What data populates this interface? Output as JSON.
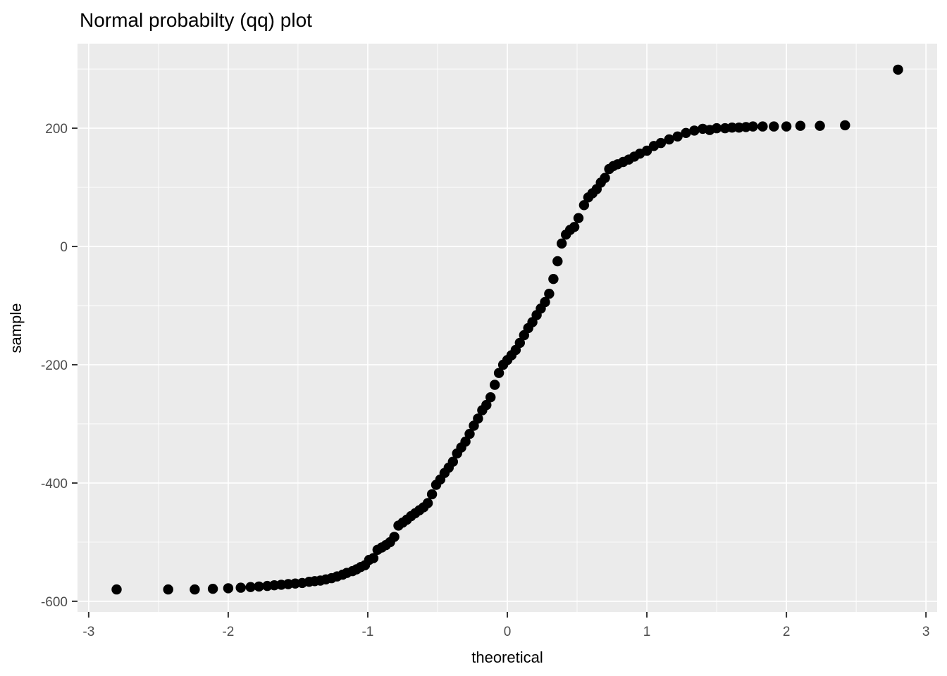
{
  "chart_data": {
    "type": "scatter",
    "title": "Normal probabilty (qq) plot",
    "xlabel": "theoretical",
    "ylabel": "sample",
    "xlim": [
      -3.08,
      3.08
    ],
    "ylim": [
      -618,
      343
    ],
    "x_ticks": [
      -3,
      -2,
      -1,
      0,
      1,
      2,
      3
    ],
    "y_ticks": [
      200,
      0,
      -200,
      -400,
      -600
    ],
    "x_minor_gridlines": [
      -2.5,
      -1.5,
      -0.5,
      0.5,
      1.5,
      2.5
    ],
    "y_minor_gridlines": [
      300,
      100,
      -100,
      -300,
      -500
    ],
    "grid": true,
    "legend": false,
    "theme": "ggplot-grey",
    "point_radius": 7.2,
    "colors": {
      "page_bg": "#FFFFFF",
      "panel_bg": "#EBEBEB",
      "grid": "#FFFFFF",
      "point": "#000000",
      "tick": "#333333",
      "tick_label": "#4D4D4D",
      "title": "#000000",
      "axis_title": "#000000"
    },
    "points": [
      [
        -2.8,
        -580
      ],
      [
        -2.43,
        -580
      ],
      [
        -2.24,
        -580
      ],
      [
        -2.11,
        -579
      ],
      [
        -2.0,
        -578
      ],
      [
        -1.91,
        -577
      ],
      [
        -1.84,
        -576
      ],
      [
        -1.78,
        -575
      ],
      [
        -1.72,
        -574
      ],
      [
        -1.67,
        -573
      ],
      [
        -1.62,
        -572
      ],
      [
        -1.57,
        -571
      ],
      [
        -1.52,
        -570
      ],
      [
        -1.47,
        -569
      ],
      [
        -1.42,
        -567
      ],
      [
        -1.38,
        -566
      ],
      [
        -1.34,
        -565
      ],
      [
        -1.3,
        -563
      ],
      [
        -1.26,
        -561
      ],
      [
        -1.22,
        -558
      ],
      [
        -1.18,
        -555
      ],
      [
        -1.15,
        -552
      ],
      [
        -1.11,
        -549
      ],
      [
        -1.08,
        -546
      ],
      [
        -1.05,
        -542
      ],
      [
        -1.02,
        -539
      ],
      [
        -0.99,
        -530
      ],
      [
        -0.96,
        -527
      ],
      [
        -0.93,
        -513
      ],
      [
        -0.9,
        -509
      ],
      [
        -0.87,
        -505
      ],
      [
        -0.84,
        -500
      ],
      [
        -0.81,
        -491
      ],
      [
        -0.78,
        -472
      ],
      [
        -0.75,
        -467
      ],
      [
        -0.72,
        -462
      ],
      [
        -0.69,
        -456
      ],
      [
        -0.66,
        -451
      ],
      [
        -0.63,
        -446
      ],
      [
        -0.6,
        -441
      ],
      [
        -0.57,
        -434
      ],
      [
        -0.54,
        -419
      ],
      [
        -0.51,
        -403
      ],
      [
        -0.48,
        -394
      ],
      [
        -0.45,
        -383
      ],
      [
        -0.42,
        -374
      ],
      [
        -0.39,
        -364
      ],
      [
        -0.36,
        -350
      ],
      [
        -0.33,
        -340
      ],
      [
        -0.3,
        -330
      ],
      [
        -0.27,
        -317
      ],
      [
        -0.24,
        -303
      ],
      [
        -0.21,
        -291
      ],
      [
        -0.18,
        -277
      ],
      [
        -0.15,
        -268
      ],
      [
        -0.12,
        -255
      ],
      [
        -0.09,
        -234
      ],
      [
        -0.06,
        -214
      ],
      [
        -0.03,
        -200
      ],
      [
        0.0,
        -192
      ],
      [
        0.03,
        -184
      ],
      [
        0.06,
        -175
      ],
      [
        0.09,
        -163
      ],
      [
        0.12,
        -150
      ],
      [
        0.15,
        -138
      ],
      [
        0.18,
        -128
      ],
      [
        0.21,
        -116
      ],
      [
        0.24,
        -105
      ],
      [
        0.27,
        -94
      ],
      [
        0.3,
        -80
      ],
      [
        0.33,
        -55
      ],
      [
        0.36,
        -25
      ],
      [
        0.39,
        5
      ],
      [
        0.42,
        20
      ],
      [
        0.45,
        28
      ],
      [
        0.48,
        33
      ],
      [
        0.51,
        48
      ],
      [
        0.55,
        70
      ],
      [
        0.58,
        83
      ],
      [
        0.61,
        90
      ],
      [
        0.64,
        97
      ],
      [
        0.67,
        108
      ],
      [
        0.7,
        116
      ],
      [
        0.73,
        131
      ],
      [
        0.76,
        136
      ],
      [
        0.79,
        139
      ],
      [
        0.83,
        143
      ],
      [
        0.87,
        147
      ],
      [
        0.91,
        152
      ],
      [
        0.95,
        157
      ],
      [
        1.0,
        162
      ],
      [
        1.05,
        170
      ],
      [
        1.1,
        175
      ],
      [
        1.16,
        181
      ],
      [
        1.22,
        186
      ],
      [
        1.28,
        192
      ],
      [
        1.34,
        196
      ],
      [
        1.4,
        199
      ],
      [
        1.45,
        197
      ],
      [
        1.5,
        200
      ],
      [
        1.56,
        200
      ],
      [
        1.61,
        201
      ],
      [
        1.66,
        201
      ],
      [
        1.71,
        202
      ],
      [
        1.76,
        203
      ],
      [
        1.83,
        203
      ],
      [
        1.91,
        203
      ],
      [
        2.0,
        203
      ],
      [
        2.1,
        204
      ],
      [
        2.24,
        204
      ],
      [
        2.42,
        205
      ],
      [
        2.8,
        299
      ]
    ]
  }
}
